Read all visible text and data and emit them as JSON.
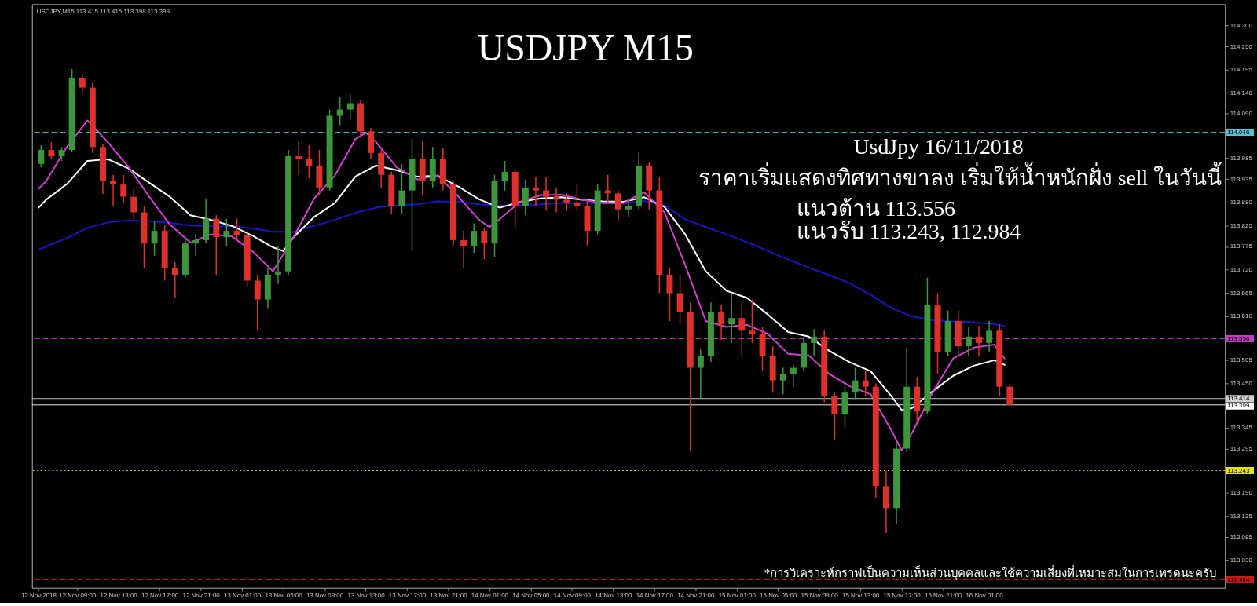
{
  "chart_data": {
    "type": "candlestick",
    "title": "USDJPY M15",
    "x": [
      "2018-11-12T05:30",
      "2018-11-12T06:30",
      "2018-11-12T07:30",
      "2018-11-12T08:30",
      "2018-11-12T09:30",
      "2018-11-12T10:30",
      "2018-11-12T11:30",
      "2018-11-12T12:30",
      "2018-11-12T13:30",
      "2018-11-12T14:30",
      "2018-11-12T15:30",
      "2018-11-12T16:30",
      "2018-11-12T17:30",
      "2018-11-12T18:30",
      "2018-11-12T19:30",
      "2018-11-12T20:30",
      "2018-11-12T21:30",
      "2018-11-12T22:30",
      "2018-11-12T23:30",
      "2018-11-13T00:30",
      "2018-11-13T01:30",
      "2018-11-13T02:30",
      "2018-11-13T03:30",
      "2018-11-13T04:30",
      "2018-11-13T05:30",
      "2018-11-13T06:30",
      "2018-11-13T07:30",
      "2018-11-13T08:30",
      "2018-11-13T09:30",
      "2018-11-13T10:30",
      "2018-11-13T11:30",
      "2018-11-13T12:30",
      "2018-11-13T13:30",
      "2018-11-13T14:30",
      "2018-11-13T15:30",
      "2018-11-13T16:30",
      "2018-11-13T17:30",
      "2018-11-13T18:30",
      "2018-11-13T19:30",
      "2018-11-13T20:30",
      "2018-11-13T21:30",
      "2018-11-13T22:30",
      "2018-11-13T23:30",
      "2018-11-14T00:30",
      "2018-11-14T01:30",
      "2018-11-14T02:30",
      "2018-11-14T03:30",
      "2018-11-14T04:30",
      "2018-11-14T05:30",
      "2018-11-14T06:30",
      "2018-11-14T07:30",
      "2018-11-14T08:30",
      "2018-11-14T09:30",
      "2018-11-14T10:30",
      "2018-11-14T11:30",
      "2018-11-14T12:30",
      "2018-11-14T13:30",
      "2018-11-14T14:30",
      "2018-11-14T15:30",
      "2018-11-14T16:30",
      "2018-11-14T17:30",
      "2018-11-14T18:30",
      "2018-11-14T19:30",
      "2018-11-14T20:30",
      "2018-11-14T21:30",
      "2018-11-14T22:30",
      "2018-11-14T23:30",
      "2018-11-15T00:30",
      "2018-11-15T01:30",
      "2018-11-15T02:30",
      "2018-11-15T03:30",
      "2018-11-15T04:30",
      "2018-11-15T05:30",
      "2018-11-15T06:30",
      "2018-11-15T07:30",
      "2018-11-15T08:30",
      "2018-11-15T09:30",
      "2018-11-15T10:30",
      "2018-11-15T11:30",
      "2018-11-15T12:30",
      "2018-11-15T13:30",
      "2018-11-15T14:30",
      "2018-11-15T15:30",
      "2018-11-15T16:30",
      "2018-11-15T17:30",
      "2018-11-15T18:30",
      "2018-11-15T19:30",
      "2018-11-15T20:30",
      "2018-11-15T21:30",
      "2018-11-15T22:30",
      "2018-11-15T23:30",
      "2018-11-16T00:30",
      "2018-11-16T01:30",
      "2018-11-16T02:30",
      "2018-11-16T03:30"
    ],
    "ohlc": [
      [
        113.971,
        114.015,
        113.963,
        114.004
      ],
      [
        114.004,
        114.022,
        113.982,
        113.989
      ],
      [
        113.989,
        114.011,
        113.978,
        114.004
      ],
      [
        114.004,
        114.196,
        114.0,
        114.174
      ],
      [
        114.174,
        114.185,
        114.141,
        114.152
      ],
      [
        114.152,
        114.163,
        113.997,
        114.011
      ],
      [
        114.011,
        114.019,
        113.9,
        113.93
      ],
      [
        113.93,
        113.945,
        113.871,
        113.922
      ],
      [
        113.922,
        113.945,
        113.878,
        113.893
      ],
      [
        113.893,
        113.915,
        113.841,
        113.856
      ],
      [
        113.856,
        113.871,
        113.723,
        113.782
      ],
      [
        113.782,
        113.834,
        113.753,
        113.812
      ],
      [
        113.812,
        113.826,
        113.694,
        113.723
      ],
      [
        113.723,
        113.738,
        113.653,
        113.708
      ],
      [
        113.708,
        113.797,
        113.701,
        113.782
      ],
      [
        113.782,
        113.804,
        113.753,
        113.79
      ],
      [
        113.79,
        113.889,
        113.782,
        113.841
      ],
      [
        113.841,
        113.849,
        113.708,
        113.797
      ],
      [
        113.797,
        113.841,
        113.775,
        113.812
      ],
      [
        113.812,
        113.841,
        113.79,
        113.801
      ],
      [
        113.801,
        113.812,
        113.679,
        113.694
      ],
      [
        113.694,
        113.708,
        113.575,
        113.649
      ],
      [
        113.649,
        113.723,
        113.627,
        113.708
      ],
      [
        113.708,
        113.775,
        113.686,
        113.716
      ],
      [
        113.716,
        114.004,
        113.708,
        113.989
      ],
      [
        113.989,
        114.026,
        113.945,
        113.982
      ],
      [
        113.982,
        114.015,
        113.937,
        113.967
      ],
      [
        113.967,
        114.004,
        113.897,
        113.915
      ],
      [
        113.915,
        114.1,
        113.908,
        114.085
      ],
      [
        114.085,
        114.129,
        114.063,
        114.1
      ],
      [
        114.1,
        114.137,
        114.078,
        114.115
      ],
      [
        114.115,
        114.122,
        114.033,
        114.048
      ],
      [
        114.048,
        114.056,
        113.982,
        113.997
      ],
      [
        113.997,
        114.004,
        113.915,
        113.945
      ],
      [
        113.945,
        113.952,
        113.852,
        113.871
      ],
      [
        113.871,
        113.971,
        113.852,
        113.908
      ],
      [
        113.908,
        114.03,
        113.764,
        113.982
      ],
      [
        113.982,
        114.026,
        113.897,
        113.93
      ],
      [
        113.93,
        114.011,
        113.915,
        113.982
      ],
      [
        113.982,
        114.008,
        113.908,
        113.923
      ],
      [
        113.923,
        113.93,
        113.775,
        113.79
      ],
      [
        113.79,
        113.812,
        113.723,
        113.775
      ],
      [
        113.775,
        113.83,
        113.76,
        113.812
      ],
      [
        113.812,
        113.819,
        113.745,
        113.782
      ],
      [
        113.782,
        113.945,
        113.749,
        113.93
      ],
      [
        113.93,
        113.978,
        113.908,
        113.952
      ],
      [
        113.952,
        113.96,
        113.819,
        113.871
      ],
      [
        113.871,
        113.934,
        113.849,
        113.915
      ],
      [
        113.915,
        113.941,
        113.871,
        113.908
      ],
      [
        113.908,
        113.941,
        113.86,
        113.893
      ],
      [
        113.893,
        113.915,
        113.856,
        113.886
      ],
      [
        113.886,
        113.901,
        113.86,
        113.878
      ],
      [
        113.878,
        113.923,
        113.863,
        113.871
      ],
      [
        113.871,
        113.886,
        113.775,
        113.812
      ],
      [
        113.812,
        113.923,
        113.804,
        113.908
      ],
      [
        113.908,
        113.945,
        113.878,
        113.901
      ],
      [
        113.901,
        113.908,
        113.838,
        113.863
      ],
      [
        113.863,
        113.889,
        113.845,
        113.871
      ],
      [
        113.871,
        113.997,
        113.863,
        113.967
      ],
      [
        113.967,
        113.974,
        113.863,
        113.908
      ],
      [
        113.908,
        113.941,
        113.664,
        113.708
      ],
      [
        113.708,
        113.723,
        113.598,
        113.664
      ],
      [
        113.664,
        113.708,
        113.59,
        113.62
      ],
      [
        113.62,
        113.642,
        113.291,
        113.487
      ],
      [
        113.487,
        113.531,
        113.413,
        113.516
      ],
      [
        113.516,
        113.642,
        113.501,
        113.62
      ],
      [
        113.62,
        113.635,
        113.553,
        113.59
      ],
      [
        113.59,
        113.664,
        113.546,
        113.605
      ],
      [
        113.605,
        113.642,
        113.516,
        113.575
      ],
      [
        113.575,
        113.649,
        113.546,
        113.568
      ],
      [
        113.568,
        113.583,
        113.479,
        113.516
      ],
      [
        113.516,
        113.538,
        113.428,
        113.457
      ],
      [
        113.457,
        113.487,
        113.424,
        113.472
      ],
      [
        113.472,
        113.494,
        113.442,
        113.487
      ],
      [
        113.487,
        113.561,
        113.479,
        113.546
      ],
      [
        113.546,
        113.579,
        113.516,
        113.561
      ],
      [
        113.561,
        113.575,
        113.405,
        113.42
      ],
      [
        113.42,
        113.428,
        113.317,
        113.376
      ],
      [
        113.376,
        113.442,
        113.346,
        113.428
      ],
      [
        113.428,
        113.487,
        113.413,
        113.457
      ],
      [
        113.457,
        113.479,
        113.42,
        113.442
      ],
      [
        113.442,
        113.45,
        113.177,
        113.206
      ],
      [
        113.206,
        113.243,
        113.095,
        113.154
      ],
      [
        113.154,
        113.309,
        113.117,
        113.295
      ],
      [
        113.295,
        113.535,
        113.287,
        113.442
      ],
      [
        113.442,
        113.465,
        113.357,
        113.383
      ],
      [
        113.383,
        113.701,
        113.376,
        113.635
      ],
      [
        113.635,
        113.664,
        113.472,
        113.524
      ],
      [
        113.524,
        113.623,
        113.516,
        113.598
      ],
      [
        113.598,
        113.623,
        113.516,
        113.538
      ],
      [
        113.538,
        113.583,
        113.516,
        113.561
      ],
      [
        113.561,
        113.587,
        113.516,
        113.546
      ],
      [
        113.546,
        113.598,
        113.524,
        113.575
      ],
      [
        113.575,
        113.59,
        113.42,
        113.442
      ],
      [
        113.442,
        113.45,
        113.398,
        113.399
      ]
    ],
    "colors": [
      "#3c963c",
      "#e0302c",
      "#3c963c",
      "#3c963c",
      "#e0302c",
      "#e0302c",
      "#e0302c",
      "#e0302c",
      "#e0302c",
      "#e0302c",
      "#e0302c",
      "#3c963c",
      "#e0302c",
      "#e0302c",
      "#3c963c",
      "#3c963c",
      "#3c963c",
      "#e0302c",
      "#3c963c",
      "#e0302c",
      "#e0302c",
      "#e0302c",
      "#3c963c",
      "#3c963c",
      "#3c963c",
      "#e0302c",
      "#e0302c",
      "#e0302c",
      "#3c963c",
      "#3c963c",
      "#3c963c",
      "#e0302c",
      "#e0302c",
      "#e0302c",
      "#e0302c",
      "#3c963c",
      "#3c963c",
      "#e0302c",
      "#3c963c",
      "#e0302c",
      "#e0302c",
      "#e0302c",
      "#3c963c",
      "#e0302c",
      "#3c963c",
      "#3c963c",
      "#e0302c",
      "#3c963c",
      "#e0302c",
      "#e0302c",
      "#e0302c",
      "#e0302c",
      "#e0302c",
      "#e0302c",
      "#3c963c",
      "#e0302c",
      "#e0302c",
      "#3c963c",
      "#3c963c",
      "#e0302c",
      "#e0302c",
      "#e0302c",
      "#e0302c",
      "#e0302c",
      "#3c963c",
      "#3c963c",
      "#e0302c",
      "#3c963c",
      "#e0302c",
      "#e0302c",
      "#e0302c",
      "#e0302c",
      "#3c963c",
      "#3c963c",
      "#3c963c",
      "#3c963c",
      "#e0302c",
      "#e0302c",
      "#3c963c",
      "#3c963c",
      "#e0302c",
      "#e0302c",
      "#e0302c",
      "#3c963c",
      "#3c963c",
      "#e0302c",
      "#3c963c",
      "#e0302c",
      "#3c963c",
      "#e0302c",
      "#3c963c",
      "#e0302c",
      "#3c963c",
      "#e0302c",
      "#e0302c"
    ],
    "series": [
      {
        "type": "line",
        "color": "#1414c8",
        "x": [
          "2018-11-12T05:15",
          "2018-11-12T06:00",
          "2018-11-12T08:00",
          "2018-11-12T10:00",
          "2018-11-12T12:00",
          "2018-11-12T14:00",
          "2018-11-12T16:00",
          "2018-11-12T18:00",
          "2018-11-12T20:00",
          "2018-11-12T22:00",
          "2018-11-13T00:00",
          "2018-11-13T02:00",
          "2018-11-13T04:00",
          "2018-11-13T06:00",
          "2018-11-13T08:00",
          "2018-11-13T10:00",
          "2018-11-13T12:00",
          "2018-11-13T14:00",
          "2018-11-13T16:00",
          "2018-11-13T18:00",
          "2018-11-13T20:00",
          "2018-11-13T22:00",
          "2018-11-14T00:00",
          "2018-11-14T02:00",
          "2018-11-14T04:00",
          "2018-11-14T06:00",
          "2018-11-14T08:00",
          "2018-11-14T10:00",
          "2018-11-14T12:00",
          "2018-11-14T14:00",
          "2018-11-14T16:00",
          "2018-11-14T18:00",
          "2018-11-14T20:00",
          "2018-11-14T22:00",
          "2018-11-15T00:00",
          "2018-11-15T02:00",
          "2018-11-15T04:00",
          "2018-11-15T06:00",
          "2018-11-15T08:00",
          "2018-11-15T10:00",
          "2018-11-15T12:00",
          "2018-11-15T14:00",
          "2018-11-15T16:00",
          "2018-11-15T18:00",
          "2018-11-15T20:00",
          "2018-11-15T22:00",
          "2018-11-16T00:00",
          "2018-11-16T02:00",
          "2018-11-16T03:00"
        ],
        "values": [
          113.767,
          113.775,
          113.795,
          113.819,
          113.832,
          113.837,
          113.835,
          113.831,
          113.825,
          113.823,
          113.823,
          113.818,
          113.81,
          113.81,
          113.824,
          113.838,
          113.855,
          113.867,
          113.873,
          113.875,
          113.882,
          113.881,
          113.875,
          113.872,
          113.873,
          113.875,
          113.878,
          113.878,
          113.878,
          113.878,
          113.883,
          113.873,
          113.839,
          113.821,
          113.804,
          113.785,
          113.765,
          113.744,
          113.725,
          113.707,
          113.687,
          113.66,
          113.629,
          113.609,
          113.6,
          113.597,
          113.595,
          113.591,
          113.586
        ]
      },
      {
        "type": "line",
        "color": "#ffffff",
        "x": [
          "2018-11-12T05:15",
          "2018-11-12T06:00",
          "2018-11-12T08:00",
          "2018-11-12T10:00",
          "2018-11-12T12:00",
          "2018-11-12T14:00",
          "2018-11-12T16:00",
          "2018-11-12T18:00",
          "2018-11-12T20:00",
          "2018-11-12T22:00",
          "2018-11-13T00:00",
          "2018-11-13T02:00",
          "2018-11-13T04:00",
          "2018-11-13T05:00",
          "2018-11-13T06:00",
          "2018-11-13T08:00",
          "2018-11-13T10:00",
          "2018-11-13T12:00",
          "2018-11-13T14:00",
          "2018-11-13T16:00",
          "2018-11-13T18:00",
          "2018-11-13T20:00",
          "2018-11-13T22:00",
          "2018-11-14T00:00",
          "2018-11-14T02:00",
          "2018-11-14T04:00",
          "2018-11-14T06:00",
          "2018-11-14T08:00",
          "2018-11-14T10:00",
          "2018-11-14T12:00",
          "2018-11-14T14:00",
          "2018-11-14T16:00",
          "2018-11-14T18:00",
          "2018-11-14T20:00",
          "2018-11-14T22:00",
          "2018-11-15T00:00",
          "2018-11-15T02:00",
          "2018-11-15T04:00",
          "2018-11-15T06:00",
          "2018-11-15T08:00",
          "2018-11-15T10:00",
          "2018-11-15T12:00",
          "2018-11-15T14:00",
          "2018-11-15T16:00",
          "2018-11-15T17:00",
          "2018-11-15T18:00",
          "2018-11-15T20:00",
          "2018-11-15T22:00",
          "2018-11-16T00:00",
          "2018-11-16T02:00",
          "2018-11-16T03:00"
        ],
        "values": [
          113.867,
          113.886,
          113.923,
          113.978,
          113.982,
          113.96,
          113.926,
          113.893,
          113.849,
          113.838,
          113.824,
          113.801,
          113.773,
          113.764,
          113.797,
          113.845,
          113.878,
          113.941,
          113.967,
          113.956,
          113.941,
          113.943,
          113.917,
          113.887,
          113.867,
          113.881,
          113.889,
          113.892,
          113.886,
          113.882,
          113.881,
          113.892,
          113.869,
          113.804,
          113.716,
          113.67,
          113.653,
          113.614,
          113.572,
          113.561,
          113.527,
          113.5,
          113.479,
          113.42,
          113.387,
          113.391,
          113.431,
          113.468,
          113.492,
          113.505,
          113.494
        ]
      },
      {
        "type": "line",
        "color": "#d63bd6",
        "x": [
          "2018-11-12T05:15",
          "2018-11-12T06:00",
          "2018-11-12T08:00",
          "2018-11-12T10:00",
          "2018-11-12T12:00",
          "2018-11-12T14:00",
          "2018-11-12T16:00",
          "2018-11-12T18:00",
          "2018-11-12T20:00",
          "2018-11-12T22:00",
          "2018-11-13T00:00",
          "2018-11-13T02:00",
          "2018-11-13T04:00",
          "2018-11-13T06:00",
          "2018-11-13T08:00",
          "2018-11-13T10:00",
          "2018-11-13T12:00",
          "2018-11-13T13:00",
          "2018-11-13T14:00",
          "2018-11-13T16:00",
          "2018-11-13T18:00",
          "2018-11-13T20:00",
          "2018-11-13T22:00",
          "2018-11-14T00:00",
          "2018-11-14T01:00",
          "2018-11-14T02:00",
          "2018-11-14T04:00",
          "2018-11-14T06:00",
          "2018-11-14T08:00",
          "2018-11-14T10:00",
          "2018-11-14T12:00",
          "2018-11-14T14:00",
          "2018-11-14T16:00",
          "2018-11-14T18:00",
          "2018-11-14T20:00",
          "2018-11-14T22:00",
          "2018-11-15T00:00",
          "2018-11-15T02:00",
          "2018-11-15T04:00",
          "2018-11-15T06:00",
          "2018-11-15T08:00",
          "2018-11-15T10:00",
          "2018-11-15T12:00",
          "2018-11-15T14:00",
          "2018-11-15T16:00",
          "2018-11-15T17:00",
          "2018-11-15T18:00",
          "2018-11-15T20:00",
          "2018-11-15T22:00",
          "2018-11-16T00:00",
          "2018-11-16T02:00",
          "2018-11-16T03:00"
        ],
        "values": [
          113.912,
          113.93,
          114.011,
          114.074,
          114.022,
          113.963,
          113.893,
          113.827,
          113.784,
          113.804,
          113.799,
          113.764,
          113.716,
          113.797,
          113.889,
          113.943,
          114.03,
          114.045,
          114.023,
          113.963,
          113.934,
          113.943,
          113.893,
          113.838,
          113.821,
          113.84,
          113.881,
          113.897,
          113.898,
          113.886,
          113.878,
          113.878,
          113.904,
          113.856,
          113.731,
          113.598,
          113.584,
          113.589,
          113.568,
          113.52,
          113.516,
          113.472,
          113.443,
          113.424,
          113.339,
          113.291,
          113.332,
          113.428,
          113.509,
          113.535,
          113.542,
          113.509
        ]
      }
    ],
    "xlim": [
      "2018-11-12T05:00",
      "2018-11-17T00:00"
    ],
    "ylim": [
      112.965,
      114.35
    ],
    "xticks": [
      {
        "value": "2018-11-12T05:15",
        "label": "12 Nov 2018"
      },
      {
        "value": "2018-11-12T09:00",
        "label": "12 Nov 09:00"
      },
      {
        "value": "2018-11-12T13:00",
        "label": "12 Nov 13:00"
      },
      {
        "value": "2018-11-12T17:00",
        "label": "12 Nov 17:00"
      },
      {
        "value": "2018-11-12T21:00",
        "label": "12 Nov 21:00"
      },
      {
        "value": "2018-11-13T01:00",
        "label": "13 Nov 01:00"
      },
      {
        "value": "2018-11-13T05:00",
        "label": "13 Nov 05:00"
      },
      {
        "value": "2018-11-13T09:00",
        "label": "13 Nov 09:00"
      },
      {
        "value": "2018-11-13T13:00",
        "label": "13 Nov 13:00"
      },
      {
        "value": "2018-11-13T17:00",
        "label": "13 Nov 17:00"
      },
      {
        "value": "2018-11-13T21:00",
        "label": "13 Nov 21:00"
      },
      {
        "value": "2018-11-14T01:00",
        "label": "14 Nov 01:00"
      },
      {
        "value": "2018-11-14T05:00",
        "label": "14 Nov 05:00"
      },
      {
        "value": "2018-11-14T09:00",
        "label": "14 Nov 09:00"
      },
      {
        "value": "2018-11-14T13:00",
        "label": "14 Nov 13:00"
      },
      {
        "value": "2018-11-14T17:00",
        "label": "14 Nov 17:00"
      },
      {
        "value": "2018-11-14T21:00",
        "label": "14 Nov 21:00"
      },
      {
        "value": "2018-11-15T01:00",
        "label": "15 Nov 01:00"
      },
      {
        "value": "2018-11-15T05:00",
        "label": "15 Nov 05:00"
      },
      {
        "value": "2018-11-15T09:00",
        "label": "15 Nov 09:00"
      },
      {
        "value": "2018-11-15T13:00",
        "label": "15 Nov 13:00"
      },
      {
        "value": "2018-11-15T17:00",
        "label": "15 Nov 17:00"
      },
      {
        "value": "2018-11-15T21:00",
        "label": "15 Nov 21:00"
      },
      {
        "value": "2018-11-16T01:00",
        "label": "16 Nov 01:00"
      }
    ],
    "yticks": [
      {
        "value": 114.3,
        "label": "114.300"
      },
      {
        "value": 114.25,
        "label": "114.250"
      },
      114.195,
      {
        "value": 114.14,
        "label": "114.140"
      },
      {
        "value": 114.09,
        "label": "114.090"
      },
      113.985,
      113.935,
      {
        "value": 113.88,
        "label": "113.880"
      },
      113.825,
      113.775,
      {
        "value": 113.72,
        "label": "113.720"
      },
      113.665,
      {
        "value": 113.61,
        "label": "113.610"
      },
      113.505,
      {
        "value": 113.45,
        "label": "113.450"
      },
      113.345,
      113.295,
      {
        "value": 113.19,
        "label": "113.190"
      },
      113.135,
      113.085,
      {
        "value": 113.03,
        "label": "113.030"
      }
    ],
    "ref_lines": [
      {
        "axis": "y",
        "value": 114.046,
        "label": "114.046",
        "color": "#4fc3cf",
        "line_style": "dashed"
      },
      {
        "axis": "y",
        "value": 113.556,
        "label": "113.556",
        "color": "#c23cc2",
        "line_style": "dashed"
      },
      {
        "axis": "y",
        "value": 113.414,
        "label": "113.414",
        "color": "#d0d0d0",
        "line_style": "solid"
      },
      {
        "axis": "y",
        "value": 113.399,
        "label": "113.399",
        "color": "#ffffff",
        "line_style": "solid"
      },
      {
        "axis": "y",
        "value": 113.243,
        "label": "113.243",
        "color": "#e6e600",
        "line_style": "dotted"
      },
      {
        "axis": "y",
        "value": 112.984,
        "label": "112.984",
        "color": "#d01818",
        "line_style": "dashed"
      }
    ],
    "annotations": [
      "USDJPY,M15 113.415 113.415 113.398 113.399",
      "UsdJpy 16/11/2018",
      "ราคาเริ่มแสดงทิศทางขาลง เริ่มให้น้ำหนักฝั่ง sell ในวันนี้",
      "แนวต้าน 113.556",
      "แนวรับ 113.243, 112.984",
      "*การวิเคราะห์กราฟเป็นความเห็นส่วนบุคคลและใช้ความเสี่ยงที่เหมาะสมในการเทรดนะครับ"
    ]
  }
}
